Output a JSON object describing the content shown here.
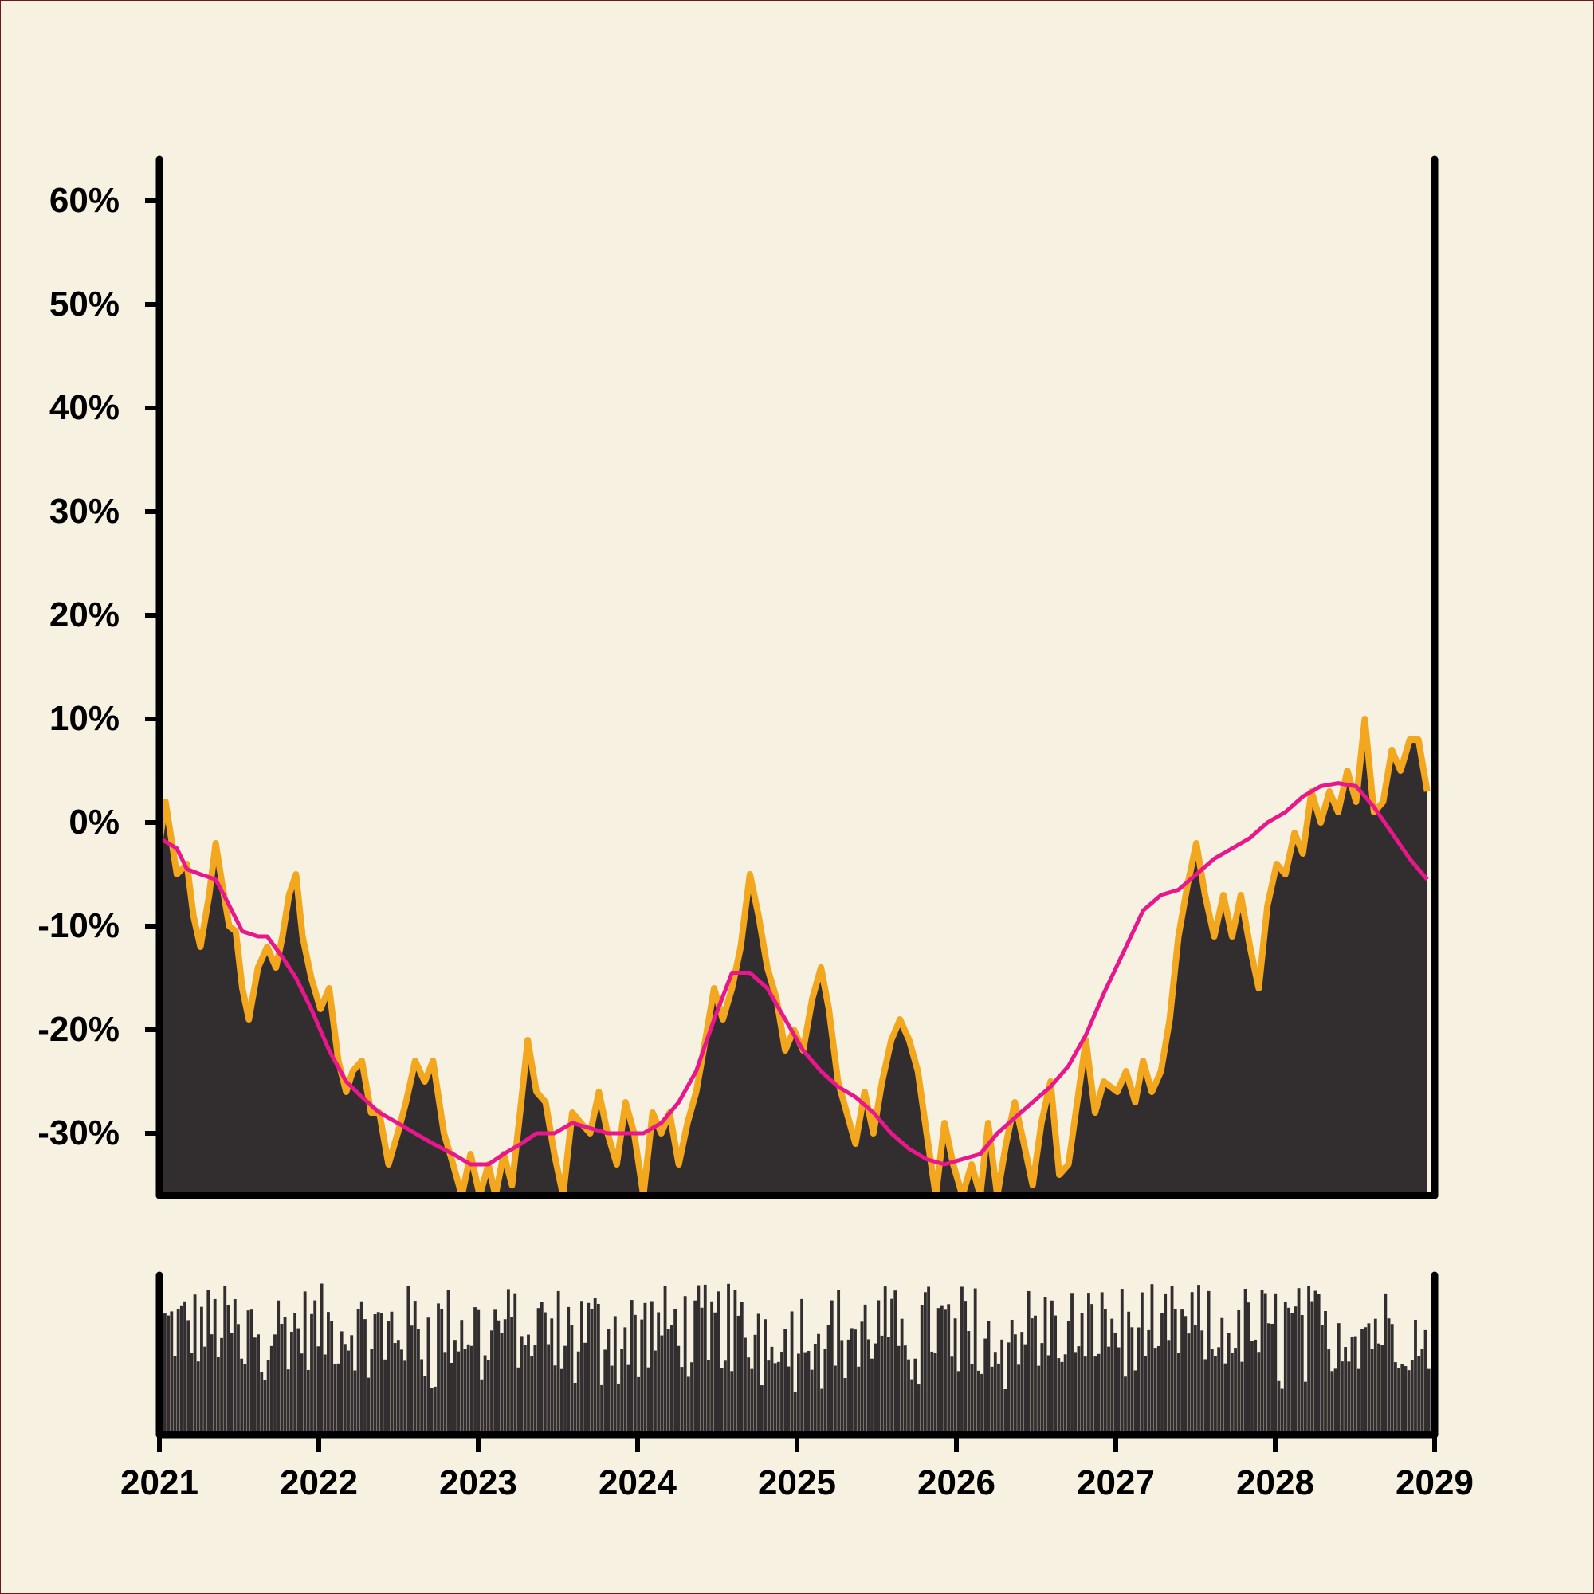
{
  "chart_data": [
    {
      "type": "area",
      "title": "",
      "xlabel": "",
      "ylabel": "",
      "x_range": [
        "2021-01-01",
        "2029-01-01"
      ],
      "ylim": [
        -36,
        64
      ],
      "x_tick_labels": [
        "2021",
        "2022",
        "2023",
        "2024",
        "2025",
        "2026",
        "2027",
        "2028",
        "2029"
      ],
      "y_tick_labels": [
        "60%",
        "50%",
        "40%",
        "30%",
        "20%",
        "10%",
        "0%",
        "-10%",
        "-20%",
        "-30%"
      ],
      "y_tick_values": [
        60,
        50,
        40,
        30,
        20,
        10,
        0,
        -10,
        -20,
        -30
      ],
      "grid": false,
      "legend": "none",
      "colors": {
        "background": "#f6f1e0",
        "area": "#322e2f",
        "area_edge": "#f2a71f",
        "moving_average": "#e8178c",
        "axis": "#000000"
      },
      "series": [
        {
          "role": "value (area)",
          "points": [
            [
              "2021-01-01",
              -2
            ],
            [
              "2021-01-15",
              2
            ],
            [
              "2021-02-10",
              -5
            ],
            [
              "2021-03-05",
              -4
            ],
            [
              "2021-03-20",
              -9
            ],
            [
              "2021-04-05",
              -12
            ],
            [
              "2021-04-25",
              -7
            ],
            [
              "2021-05-10",
              -2
            ],
            [
              "2021-05-25",
              -6
            ],
            [
              "2021-06-10",
              -10
            ],
            [
              "2021-06-25",
              -10.5
            ],
            [
              "2021-07-10",
              -16
            ],
            [
              "2021-07-25",
              -19
            ],
            [
              "2021-08-15",
              -14
            ],
            [
              "2021-09-05",
              -12
            ],
            [
              "2021-09-25",
              -14
            ],
            [
              "2021-10-10",
              -11
            ],
            [
              "2021-10-25",
              -7
            ],
            [
              "2021-11-10",
              -5
            ],
            [
              "2021-11-25",
              -11
            ],
            [
              "2021-12-15",
              -15
            ],
            [
              "2022-01-05",
              -18
            ],
            [
              "2022-01-25",
              -16
            ],
            [
              "2022-02-15",
              -23
            ],
            [
              "2022-03-05",
              -26
            ],
            [
              "2022-03-20",
              -24
            ],
            [
              "2022-04-10",
              -23
            ],
            [
              "2022-05-01",
              -28
            ],
            [
              "2022-05-20",
              -28
            ],
            [
              "2022-06-10",
              -33
            ],
            [
              "2022-07-01",
              -30
            ],
            [
              "2022-07-20",
              -27
            ],
            [
              "2022-08-10",
              -23
            ],
            [
              "2022-09-01",
              -25
            ],
            [
              "2022-09-20",
              -23
            ],
            [
              "2022-10-15",
              -30
            ],
            [
              "2022-11-05",
              -33
            ],
            [
              "2022-11-25",
              -36
            ],
            [
              "2022-12-15",
              -32
            ],
            [
              "2023-01-05",
              -36
            ],
            [
              "2023-01-25",
              -33
            ],
            [
              "2023-02-10",
              -36
            ],
            [
              "2023-03-01",
              -32
            ],
            [
              "2023-03-20",
              -35
            ],
            [
              "2023-04-10",
              -27
            ],
            [
              "2023-04-25",
              -21
            ],
            [
              "2023-05-15",
              -26
            ],
            [
              "2023-06-05",
              -27
            ],
            [
              "2023-06-25",
              -32
            ],
            [
              "2023-07-15",
              -36
            ],
            [
              "2023-08-05",
              -28
            ],
            [
              "2023-08-25",
              -29
            ],
            [
              "2023-09-15",
              -30
            ],
            [
              "2023-10-05",
              -26
            ],
            [
              "2023-10-25",
              -30
            ],
            [
              "2023-11-15",
              -33
            ],
            [
              "2023-12-05",
              -27
            ],
            [
              "2023-12-25",
              -30
            ],
            [
              "2024-01-15",
              -36
            ],
            [
              "2024-02-05",
              -28
            ],
            [
              "2024-02-25",
              -30
            ],
            [
              "2024-03-15",
              -28
            ],
            [
              "2024-04-05",
              -33
            ],
            [
              "2024-04-25",
              -29
            ],
            [
              "2024-05-15",
              -26
            ],
            [
              "2024-06-05",
              -21
            ],
            [
              "2024-06-25",
              -16
            ],
            [
              "2024-07-15",
              -19
            ],
            [
              "2024-08-05",
              -16
            ],
            [
              "2024-08-25",
              -12
            ],
            [
              "2024-09-15",
              -5
            ],
            [
              "2024-10-05",
              -9
            ],
            [
              "2024-10-25",
              -14
            ],
            [
              "2024-11-15",
              -17
            ],
            [
              "2024-12-05",
              -22
            ],
            [
              "2024-12-25",
              -20
            ],
            [
              "2025-01-15",
              -22
            ],
            [
              "2025-02-05",
              -17
            ],
            [
              "2025-02-25",
              -14
            ],
            [
              "2025-03-15",
              -18
            ],
            [
              "2025-04-05",
              -25
            ],
            [
              "2025-04-25",
              -28
            ],
            [
              "2025-05-15",
              -31
            ],
            [
              "2025-06-05",
              -26
            ],
            [
              "2025-06-25",
              -30
            ],
            [
              "2025-07-15",
              -25
            ],
            [
              "2025-08-05",
              -21
            ],
            [
              "2025-08-25",
              -19
            ],
            [
              "2025-09-15",
              -21
            ],
            [
              "2025-10-05",
              -24
            ],
            [
              "2025-10-25",
              -30
            ],
            [
              "2025-11-15",
              -36
            ],
            [
              "2025-12-05",
              -29
            ],
            [
              "2025-12-25",
              -33
            ],
            [
              "2026-01-15",
              -36
            ],
            [
              "2026-02-05",
              -33
            ],
            [
              "2026-02-25",
              -36
            ],
            [
              "2026-03-15",
              -29
            ],
            [
              "2026-04-05",
              -36
            ],
            [
              "2026-04-25",
              -31
            ],
            [
              "2026-05-15",
              -27
            ],
            [
              "2026-06-05",
              -31
            ],
            [
              "2026-06-25",
              -35
            ],
            [
              "2026-07-15",
              -29
            ],
            [
              "2026-08-05",
              -25
            ],
            [
              "2026-08-25",
              -34
            ],
            [
              "2026-09-15",
              -33
            ],
            [
              "2026-10-05",
              -27
            ],
            [
              "2026-10-25",
              -21
            ],
            [
              "2026-11-15",
              -28
            ],
            [
              "2026-12-05",
              -25
            ],
            [
              "2027-01-05",
              -26
            ],
            [
              "2027-01-25",
              -24
            ],
            [
              "2027-02-15",
              -27
            ],
            [
              "2027-03-05",
              -23
            ],
            [
              "2027-03-25",
              -26
            ],
            [
              "2027-04-15",
              -24
            ],
            [
              "2027-05-05",
              -19
            ],
            [
              "2027-05-25",
              -11
            ],
            [
              "2027-06-15",
              -6
            ],
            [
              "2027-07-05",
              -2
            ],
            [
              "2027-07-25",
              -7
            ],
            [
              "2027-08-15",
              -11
            ],
            [
              "2027-09-05",
              -7
            ],
            [
              "2027-09-25",
              -11
            ],
            [
              "2027-10-15",
              -7
            ],
            [
              "2027-11-05",
              -12
            ],
            [
              "2027-11-25",
              -16
            ],
            [
              "2027-12-15",
              -8
            ],
            [
              "2028-01-05",
              -4
            ],
            [
              "2028-01-25",
              -5
            ],
            [
              "2028-02-15",
              -1
            ],
            [
              "2028-03-05",
              -3
            ],
            [
              "2028-03-25",
              3
            ],
            [
              "2028-04-15",
              0
            ],
            [
              "2028-05-05",
              3
            ],
            [
              "2028-05-25",
              1
            ],
            [
              "2028-06-15",
              5
            ],
            [
              "2028-07-05",
              2
            ],
            [
              "2028-07-25",
              10
            ],
            [
              "2028-08-15",
              1
            ],
            [
              "2028-09-05",
              2
            ],
            [
              "2028-09-25",
              7
            ],
            [
              "2028-10-15",
              5
            ],
            [
              "2028-11-05",
              8
            ],
            [
              "2028-11-25",
              8
            ],
            [
              "2028-12-15",
              3
            ]
          ]
        },
        {
          "role": "moving average",
          "points": [
            [
              "2021-01-01",
              -1.5
            ],
            [
              "2021-02-10",
              -2.5
            ],
            [
              "2021-03-05",
              -4.5
            ],
            [
              "2021-04-05",
              -5.0
            ],
            [
              "2021-05-10",
              -5.5
            ],
            [
              "2021-06-10",
              -8
            ],
            [
              "2021-07-10",
              -10.5
            ],
            [
              "2021-08-15",
              -11
            ],
            [
              "2021-09-05",
              -11
            ],
            [
              "2021-10-10",
              -13
            ],
            [
              "2021-11-10",
              -15
            ],
            [
              "2021-12-15",
              -18
            ],
            [
              "2022-01-25",
              -22
            ],
            [
              "2022-03-05",
              -25
            ],
            [
              "2022-04-10",
              -26.5
            ],
            [
              "2022-05-20",
              -28
            ],
            [
              "2022-07-01",
              -29
            ],
            [
              "2022-08-10",
              -30
            ],
            [
              "2022-09-20",
              -31
            ],
            [
              "2022-11-05",
              -32
            ],
            [
              "2022-12-15",
              -33
            ],
            [
              "2023-01-25",
              -33
            ],
            [
              "2023-03-01",
              -32
            ],
            [
              "2023-04-10",
              -31
            ],
            [
              "2023-05-15",
              -30
            ],
            [
              "2023-06-25",
              -30
            ],
            [
              "2023-08-05",
              -29
            ],
            [
              "2023-09-15",
              -29.5
            ],
            [
              "2023-10-25",
              -30
            ],
            [
              "2023-12-05",
              -30
            ],
            [
              "2024-01-15",
              -30
            ],
            [
              "2024-02-25",
              -29
            ],
            [
              "2024-04-05",
              -27
            ],
            [
              "2024-05-15",
              -24
            ],
            [
              "2024-06-25",
              -19
            ],
            [
              "2024-08-05",
              -14.5
            ],
            [
              "2024-09-15",
              -14.5
            ],
            [
              "2024-10-25",
              -16
            ],
            [
              "2024-12-05",
              -19
            ],
            [
              "2025-01-15",
              -22
            ],
            [
              "2025-02-25",
              -24
            ],
            [
              "2025-04-05",
              -25.5
            ],
            [
              "2025-05-15",
              -26.5
            ],
            [
              "2025-06-25",
              -28
            ],
            [
              "2025-08-05",
              -30
            ],
            [
              "2025-09-15",
              -31.5
            ],
            [
              "2025-10-25",
              -32.5
            ],
            [
              "2025-12-05",
              -33
            ],
            [
              "2026-01-15",
              -32.5
            ],
            [
              "2026-02-25",
              -32
            ],
            [
              "2026-04-05",
              -30
            ],
            [
              "2026-05-15",
              -28.5
            ],
            [
              "2026-06-25",
              -27
            ],
            [
              "2026-08-05",
              -25.5
            ],
            [
              "2026-09-15",
              -23.5
            ],
            [
              "2026-10-25",
              -20.5
            ],
            [
              "2026-12-05",
              -16.5
            ],
            [
              "2027-01-25",
              -12
            ],
            [
              "2027-03-05",
              -8.5
            ],
            [
              "2027-04-15",
              -7
            ],
            [
              "2027-05-25",
              -6.5
            ],
            [
              "2027-07-05",
              -5
            ],
            [
              "2027-08-15",
              -3.5
            ],
            [
              "2027-09-25",
              -2.5
            ],
            [
              "2027-11-05",
              -1.5
            ],
            [
              "2027-12-15",
              0
            ],
            [
              "2028-01-25",
              1
            ],
            [
              "2028-03-05",
              2.5
            ],
            [
              "2028-04-15",
              3.5
            ],
            [
              "2028-05-25",
              3.8
            ],
            [
              "2028-07-05",
              3.5
            ],
            [
              "2028-08-15",
              1.5
            ],
            [
              "2028-09-25",
              -1
            ],
            [
              "2028-11-05",
              -3.5
            ],
            [
              "2028-12-15",
              -5.5
            ]
          ]
        }
      ]
    },
    {
      "type": "bar",
      "title": "",
      "xlabel": "",
      "ylabel": "",
      "x_range": [
        "2021-01-01",
        "2029-01-01"
      ],
      "bar_count": 380,
      "value_range": [
        0.1,
        0.95
      ],
      "description_of_values": "dense weekly bars with values between roughly 10% and 95% of panel height",
      "x_tick_labels": [
        "2021",
        "2022",
        "2023",
        "2024",
        "2025",
        "2026",
        "2027",
        "2028",
        "2029"
      ]
    }
  ]
}
